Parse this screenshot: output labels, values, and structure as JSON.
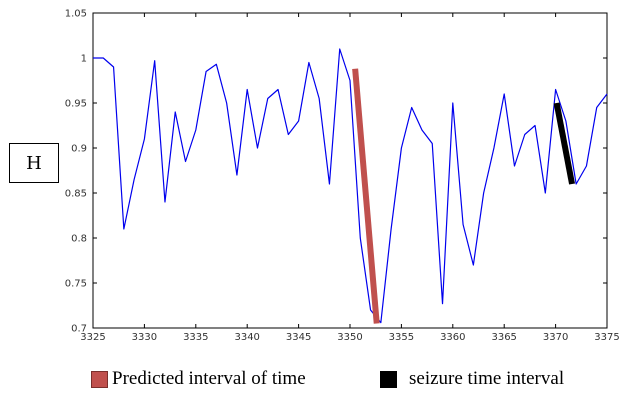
{
  "chart_data": {
    "type": "line",
    "ylabel": "H",
    "xlim": [
      3325,
      3375
    ],
    "ylim": [
      0.7,
      1.05
    ],
    "xticks": [
      3325,
      3330,
      3335,
      3340,
      3345,
      3350,
      3355,
      3360,
      3365,
      3370,
      3375
    ],
    "yticks": [
      0.7,
      0.75,
      0.8,
      0.85,
      0.9,
      0.95,
      1,
      1.05
    ],
    "ytick_labels": [
      "0.7",
      "0.75",
      "0.8",
      "0.85",
      "0.9",
      "0.95",
      "1",
      "1.05"
    ],
    "grid": false,
    "series": [
      {
        "color": "#0000ee",
        "x": [
          3325,
          3326,
          3327,
          3328,
          3329,
          3330,
          3331,
          3332,
          3333,
          3334,
          3335,
          3336,
          3337,
          3338,
          3339,
          3340,
          3341,
          3342,
          3343,
          3344,
          3345,
          3346,
          3347,
          3348,
          3349,
          3350,
          3351,
          3352,
          3353,
          3354,
          3355,
          3356,
          3357,
          3358,
          3359,
          3360,
          3361,
          3362,
          3363,
          3364,
          3365,
          3366,
          3367,
          3368,
          3369,
          3370,
          3371,
          3372,
          3373,
          3374,
          3375
        ],
        "y": [
          1.0,
          1.0,
          0.99,
          0.81,
          0.865,
          0.91,
          0.997,
          0.84,
          0.94,
          0.885,
          0.92,
          0.985,
          0.993,
          0.95,
          0.87,
          0.965,
          0.9,
          0.955,
          0.965,
          0.915,
          0.93,
          0.995,
          0.955,
          0.86,
          1.01,
          0.975,
          0.8,
          0.72,
          0.706,
          0.81,
          0.9,
          0.945,
          0.92,
          0.905,
          0.727,
          0.95,
          0.815,
          0.77,
          0.85,
          0.9,
          0.96,
          0.88,
          0.915,
          0.925,
          0.85,
          0.965,
          0.93,
          0.86,
          0.88,
          0.945,
          0.96
        ]
      }
    ],
    "highlights": [
      {
        "name": "Predicted interval of time",
        "color": "#c0504d",
        "x": [
          3350.5,
          3352.6
        ],
        "y": [
          0.988,
          0.705
        ],
        "width": 6
      },
      {
        "name": "seizure time interval",
        "color": "#000000",
        "x": [
          3370.1,
          3371.6
        ],
        "y": [
          0.95,
          0.86
        ],
        "width": 6
      }
    ]
  },
  "legend": [
    {
      "label": "Predicted interval of time",
      "color": "#c0504d"
    },
    {
      "label": "seizure time interval",
      "color": "#000000"
    }
  ]
}
